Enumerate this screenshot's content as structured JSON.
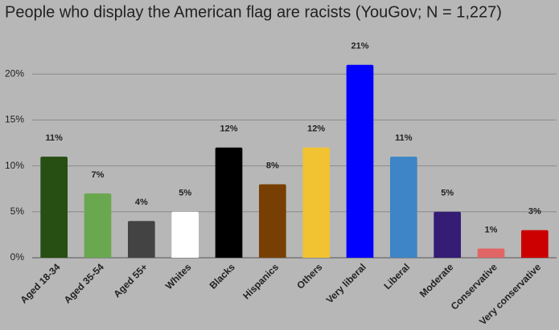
{
  "chart_data": {
    "type": "bar",
    "title": "People who display the American flag are racists (YouGov; N = 1,227)",
    "categories": [
      "Aged 18-34",
      "Aged 35-54",
      "Aged 55+",
      "Whites",
      "Blacks",
      "Hispanics",
      "Others",
      "Very liberal",
      "Liberal",
      "Moderate",
      "Conservative",
      "Very conservative"
    ],
    "values": [
      11,
      7,
      4,
      5,
      12,
      8,
      12,
      21,
      11,
      5,
      1,
      3
    ],
    "value_labels": [
      "11%",
      "7%",
      "4%",
      "5%",
      "12%",
      "8%",
      "12%",
      "21%",
      "11%",
      "5%",
      "1%",
      "3%"
    ],
    "colors": [
      "#274e13",
      "#6aa84f",
      "#434343",
      "#ffffff",
      "#000000",
      "#783f04",
      "#f1c232",
      "#0000ff",
      "#3d85c6",
      "#351c75",
      "#e06666",
      "#cc0000"
    ],
    "ylim": [
      0,
      25
    ],
    "yticks": [
      {
        "value": 0,
        "label": "0%"
      },
      {
        "value": 5,
        "label": "5%"
      },
      {
        "value": 10,
        "label": "10%"
      },
      {
        "value": 15,
        "label": "15%"
      },
      {
        "value": 20,
        "label": "20%"
      }
    ],
    "grid": true
  }
}
